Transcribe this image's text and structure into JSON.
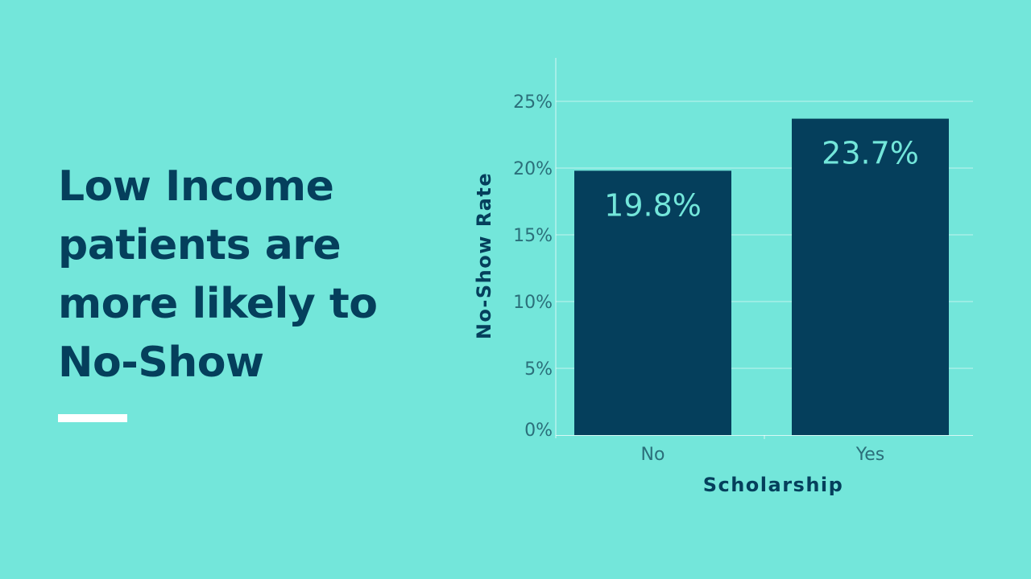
{
  "slide": {
    "title_lines": [
      "Low Income",
      "patients are",
      "more likely to",
      "No-Show"
    ],
    "accent_color": "#ffffff",
    "text_color": "#053f5c",
    "background_color": "#73e6da"
  },
  "chart_data": {
    "type": "bar",
    "categories": [
      "No",
      "Yes"
    ],
    "values": [
      19.8,
      23.7
    ],
    "value_labels": [
      "19.8%",
      "23.7%"
    ],
    "title": "",
    "xlabel": "Scholarship",
    "ylabel": "No-Show Rate",
    "ylim": [
      0,
      25
    ],
    "yticks": [
      0,
      5,
      10,
      15,
      20,
      25
    ],
    "ytick_labels": [
      "0%",
      "5%",
      "10%",
      "15%",
      "20%",
      "25%"
    ],
    "grid": true,
    "legend": "none",
    "bar_color": "#053f5c",
    "label_color": "#73e6da"
  }
}
